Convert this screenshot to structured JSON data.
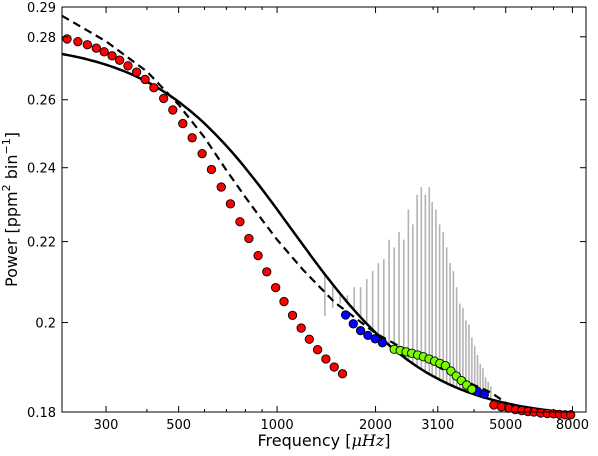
{
  "chart_data": {
    "type": "scatter",
    "title": "",
    "xlabel_parts": {
      "main": "Frequency [",
      "unit": "μHz",
      "close": "]"
    },
    "ylabel_parts": {
      "main": "Power [ppm",
      "sup1": "2",
      "mid": "  bin",
      "sup2": "−1",
      "close": "]"
    },
    "x_scale": "log",
    "y_scale": "log",
    "xlim": [
      220,
      8800
    ],
    "ylim": [
      0.18,
      0.29
    ],
    "x_ticks": [
      300,
      500,
      1000,
      2000,
      3100,
      5000,
      8000
    ],
    "x_tick_labels": [
      "300",
      "500",
      "1000",
      "2000",
      "3100",
      "5000",
      "8000"
    ],
    "y_ticks": [
      0.18,
      0.2,
      0.22,
      0.24,
      0.26,
      0.28,
      0.29
    ],
    "y_tick_labels": [
      "0.18",
      "0.2",
      "0.22",
      "0.24",
      "0.26",
      "0.28",
      "0.29"
    ],
    "grid": false,
    "legend": "none",
    "model_params": {
      "floor": 0.1785,
      "amplitude": 0.1,
      "fc": 1000,
      "slope": 2.08
    },
    "series": [
      {
        "role": "background-fit-solid",
        "style": "solid",
        "color": "#000000",
        "x_range": [
          220,
          8000
        ]
      },
      {
        "role": "background-fit-dashed",
        "style": "dashed",
        "color": "#000000",
        "x": [
          220,
          300,
          400,
          500,
          600,
          700,
          800,
          900,
          1000,
          1200,
          1500,
          2000,
          2500,
          3000,
          3500,
          4000,
          4500,
          5000
        ],
        "y": [
          0.287,
          0.2785,
          0.2688,
          0.2585,
          0.2487,
          0.2393,
          0.2318,
          0.2257,
          0.2205,
          0.2128,
          0.2048,
          0.1975,
          0.1935,
          0.1905,
          0.1878,
          0.1858,
          0.1842,
          0.182
        ]
      },
      {
        "role": "oscillation-power-spikes",
        "color": "#b3b3b3",
        "x": [
          1400,
          1480,
          1560,
          1640,
          1720,
          1800,
          1880,
          1960,
          2040,
          2120,
          2200,
          2280,
          2360,
          2440,
          2520,
          2600,
          2680,
          2760,
          2840,
          2920,
          2980,
          3060,
          3140,
          3220,
          3300,
          3380,
          3460,
          3540,
          3620,
          3700,
          3780,
          3860,
          3940,
          4020,
          4100,
          4180,
          4260,
          4340,
          4420,
          4500
        ],
        "y": [
          0.2015,
          0.2035,
          0.2045,
          0.2065,
          0.2085,
          0.2085,
          0.2105,
          0.2125,
          0.2145,
          0.2155,
          0.2205,
          0.2185,
          0.2225,
          0.2205,
          0.2285,
          0.2245,
          0.2325,
          0.2345,
          0.2325,
          0.2345,
          0.2305,
          0.2285,
          0.2245,
          0.2225,
          0.2185,
          0.2145,
          0.2125,
          0.2085,
          0.2045,
          0.2035,
          0.2005,
          0.1995,
          0.1965,
          0.1945,
          0.1925,
          0.1905,
          0.1895,
          0.1875,
          0.1865,
          0.1855
        ]
      },
      {
        "role": "points-red",
        "color": "#ff0000",
        "x": [
          228,
          246,
          263,
          280,
          296,
          313,
          330,
          350,
          372,
          395,
          420,
          450,
          480,
          515,
          550,
          590,
          630,
          675,
          720,
          770,
          820,
          875,
          930,
          990,
          1050,
          1115,
          1185,
          1255,
          1330,
          1410,
          1495,
          1585,
          4600,
          4850,
          5100,
          5350,
          5600,
          5850,
          6100,
          6400,
          6700,
          7000,
          7300,
          7600,
          7900
        ],
        "y": [
          0.2793,
          0.2784,
          0.2774,
          0.2763,
          0.2751,
          0.2738,
          0.2724,
          0.2706,
          0.2686,
          0.2663,
          0.2637,
          0.2604,
          0.2569,
          0.2528,
          0.2486,
          0.244,
          0.2395,
          0.2346,
          0.23,
          0.2252,
          0.2208,
          0.2164,
          0.2123,
          0.2084,
          0.205,
          0.2017,
          0.1987,
          0.1961,
          0.1937,
          0.1916,
          0.1898,
          0.1883,
          0.1815,
          0.1811,
          0.1808,
          0.1805,
          0.1803,
          0.1801,
          0.18,
          0.1798,
          0.1797,
          0.1796,
          0.1795,
          0.1794,
          0.1794
        ]
      },
      {
        "role": "points-blue",
        "color": "#0000ff",
        "x": [
          1620,
          1710,
          1800,
          1895,
          1995,
          2100,
          4100,
          4300
        ],
        "y": [
          0.2018,
          0.1997,
          0.1981,
          0.197,
          0.1962,
          0.1953,
          0.1844,
          0.1838
        ]
      },
      {
        "role": "points-green",
        "color": "#7cfc00",
        "x": [
          2280,
          2380,
          2480,
          2580,
          2690,
          2800,
          2915,
          3030,
          3145,
          3270,
          3400,
          3530,
          3660,
          3800,
          3940
        ],
        "y": [
          0.1938,
          0.1935,
          0.1932,
          0.1929,
          0.1925,
          0.1921,
          0.1916,
          0.1911,
          0.1906,
          0.1901,
          0.1889,
          0.1878,
          0.1868,
          0.1858,
          0.1849
        ]
      }
    ]
  }
}
